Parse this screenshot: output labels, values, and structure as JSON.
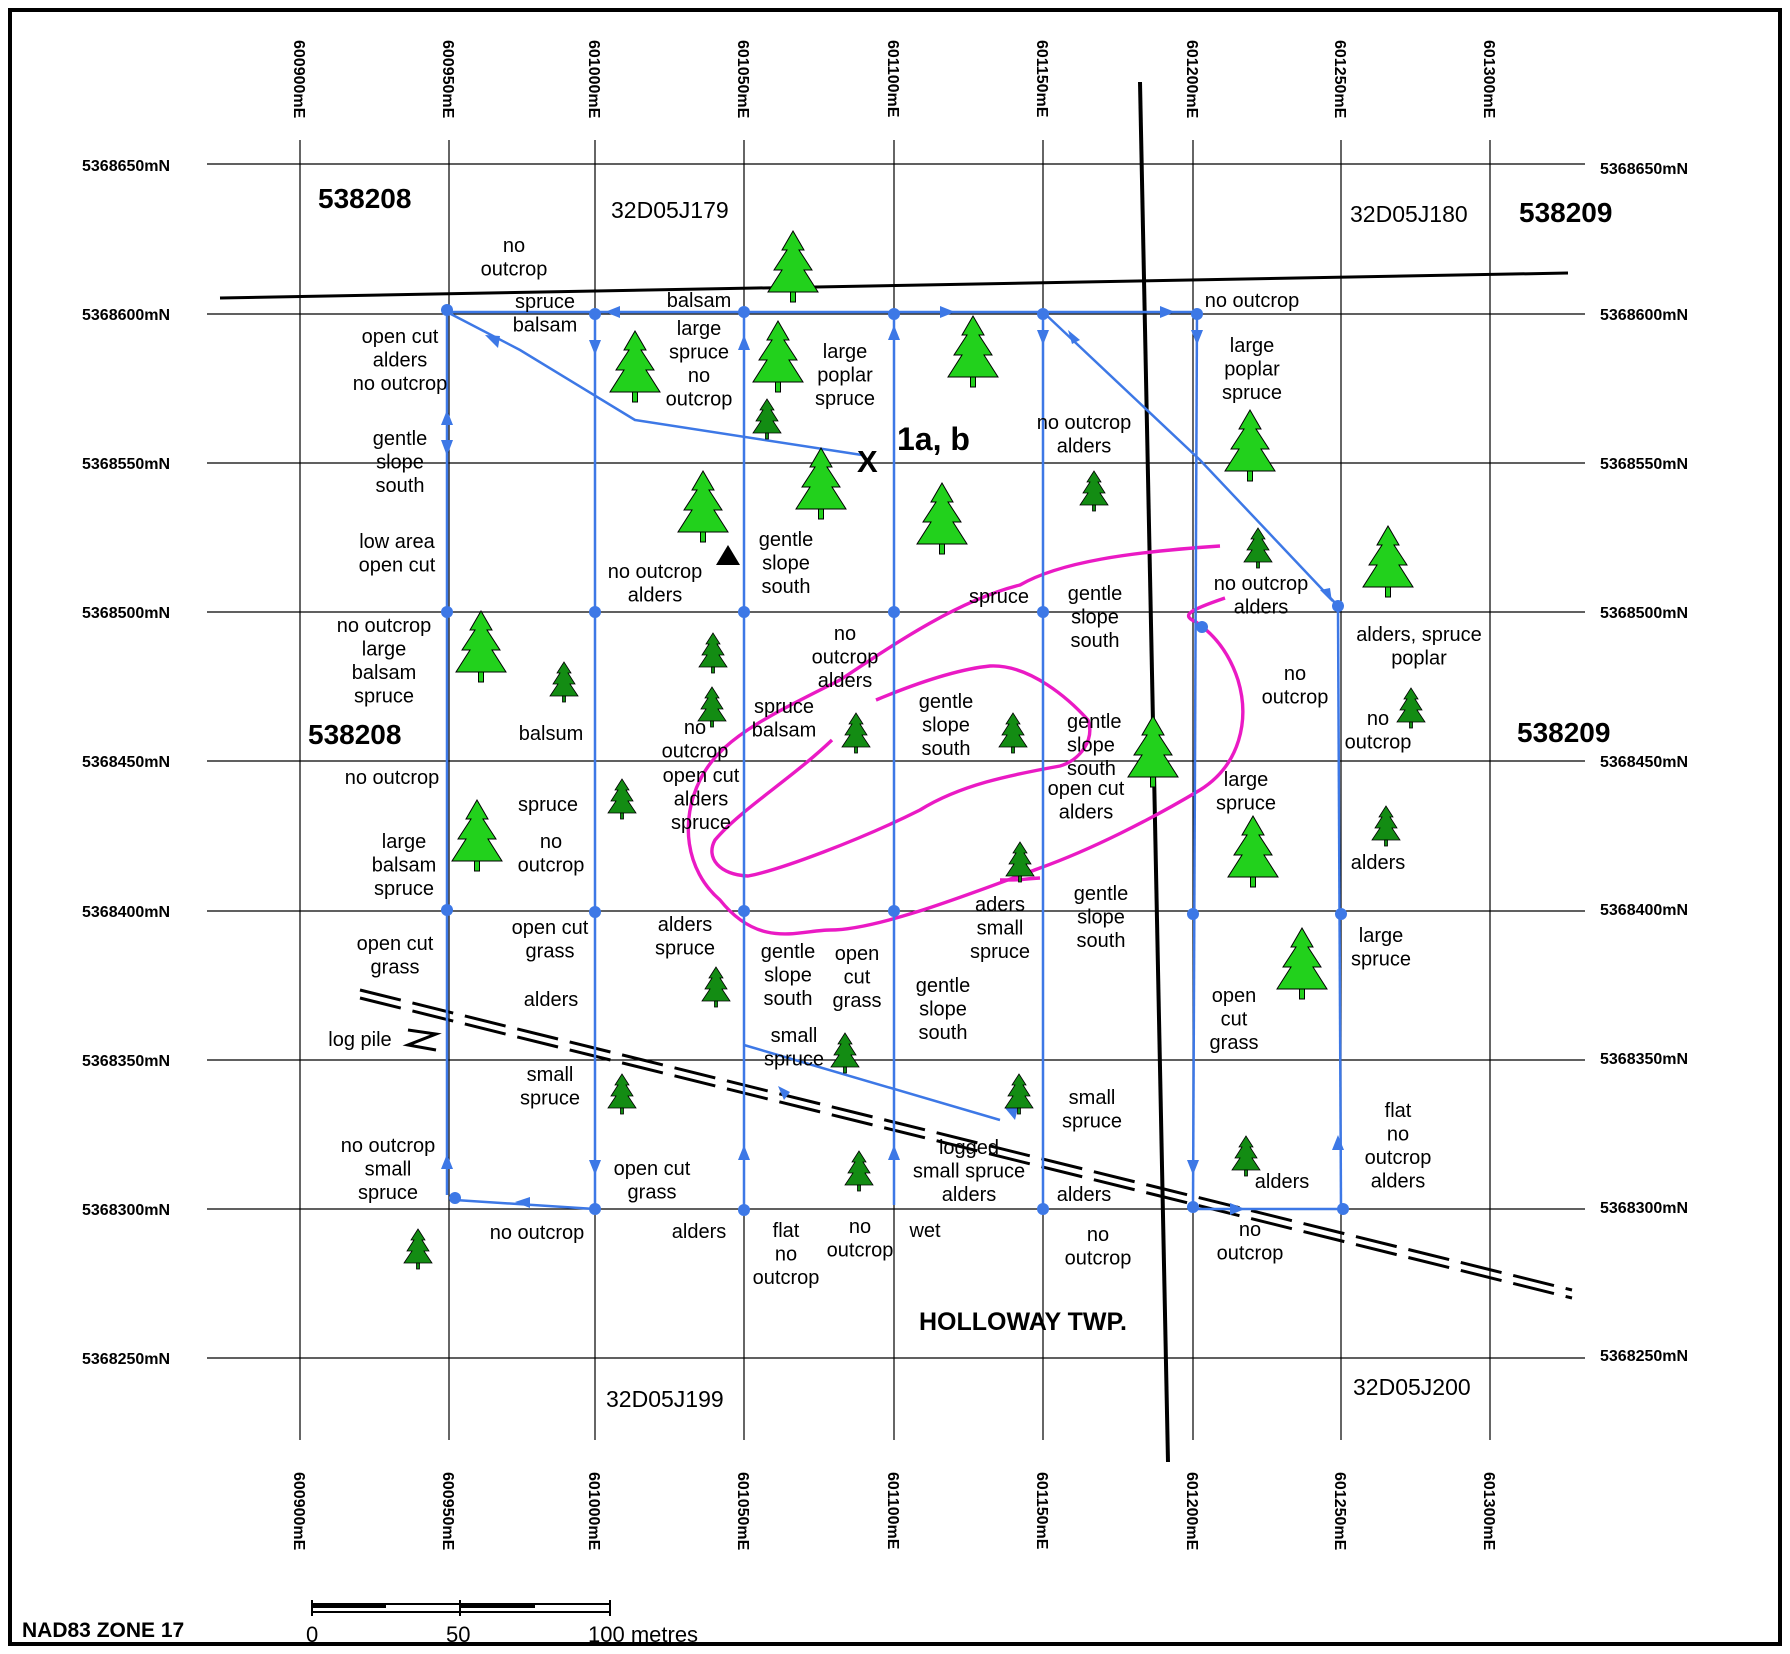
{
  "map": {
    "datum": "NAD83 ZONE 17",
    "township": "HOLLOWAY TWP.",
    "sample_label": "1a, b",
    "sample_marker": "X",
    "scale_bar": {
      "labels": [
        "0",
        "50",
        "100 metres"
      ]
    },
    "eastings": [
      "600900mE",
      "600950mE",
      "601000mE",
      "601050mE",
      "601100mE",
      "601150mE",
      "601200mE",
      "601250mE",
      "601300mE"
    ],
    "northings": [
      "5368650mN",
      "5368600mN",
      "5368550mN",
      "5368500mN",
      "5368450mN",
      "5368400mN",
      "5368350mN",
      "5368300mN",
      "5368250mN"
    ],
    "claims": {
      "west_top": "538208",
      "west_mid": "538208",
      "east_top": "538209",
      "east_mid": "538209"
    },
    "cells": {
      "nw": "32D05J179",
      "ne": "32D05J180",
      "sw": "32D05J199",
      "se": "32D05J200"
    },
    "colors": {
      "traverse": "#3d78e6",
      "outline": "#ea1ac4",
      "tree": "#22d11c",
      "tree_small": "#138c13"
    },
    "icons": [
      "tree-icon",
      "small-tree-icon",
      "triangle-icon",
      "bridge-icon"
    ],
    "notes": [
      [
        "no",
        "outcrop"
      ],
      [
        "spruce",
        "balsam"
      ],
      [
        "balsam"
      ],
      [
        "no outcrop"
      ],
      [
        "open cut",
        "alders",
        "no outcrop"
      ],
      [
        "large",
        "spruce",
        "no",
        "outcrop"
      ],
      [
        "large",
        "poplar",
        "spruce"
      ],
      [
        "large",
        "poplar",
        "spruce"
      ],
      [
        "gentle",
        "slope",
        "south"
      ],
      [
        "no outcrop",
        "alders"
      ],
      [
        "low area",
        "open cut"
      ],
      [
        "gentle",
        "slope",
        "south"
      ],
      [
        "no outcrop",
        "alders"
      ],
      [
        "no outcrop",
        "alders"
      ],
      [
        "spruce"
      ],
      [
        "gentle",
        "slope",
        "south"
      ],
      [
        "no outcrop",
        "large",
        "balsam",
        "spruce"
      ],
      [
        "alders, spruce",
        "poplar"
      ],
      [
        "no",
        "outcrop",
        "alders"
      ],
      [
        "balsum"
      ],
      [
        "spruce",
        "balsam"
      ],
      [
        "gentle",
        "slope",
        "south"
      ],
      [
        "no",
        "outcrop"
      ],
      [
        "gentle",
        "slope",
        "south"
      ],
      [
        "no",
        "outcrop"
      ],
      [
        "no",
        "outcrop"
      ],
      [
        "no outcrop"
      ],
      [
        "open cut",
        "alders",
        "spruce"
      ],
      [
        "open cut",
        "alders"
      ],
      [
        "large",
        "spruce"
      ],
      [
        "spruce"
      ],
      [
        "no",
        "outcrop"
      ],
      [
        "large",
        "balsam",
        "spruce"
      ],
      [
        "alders"
      ],
      [
        "open cut",
        "grass"
      ],
      [
        "open cut",
        "grass"
      ],
      [
        "alders",
        "spruce"
      ],
      [
        "gentle",
        "slope",
        "south"
      ],
      [
        "open",
        "cut",
        "grass"
      ],
      [
        "aders",
        "small",
        "spruce"
      ],
      [
        "gentle",
        "slope",
        "south"
      ],
      [
        "large",
        "spruce"
      ],
      [
        "alders"
      ],
      [
        "gentle",
        "slope",
        "south"
      ],
      [
        "open",
        "cut",
        "grass"
      ],
      [
        "log pile"
      ],
      [
        "small",
        "spruce"
      ],
      [
        "small",
        "spruce"
      ],
      [
        "small",
        "spruce"
      ],
      [
        "flat",
        "no",
        "outcrop",
        "alders"
      ],
      [
        "logged",
        "small spruce",
        "alders"
      ],
      [
        "alders"
      ],
      [
        "no outcrop",
        "small",
        "spruce"
      ],
      [
        "open cut",
        "grass"
      ],
      [
        "alders"
      ],
      [
        "no outcrop"
      ],
      [
        "alders"
      ],
      [
        "flat",
        "no",
        "outcrop"
      ],
      [
        "no",
        "outcrop"
      ],
      [
        "wet"
      ],
      [
        "no",
        "outcrop"
      ],
      [
        "no",
        "outcrop"
      ]
    ]
  }
}
